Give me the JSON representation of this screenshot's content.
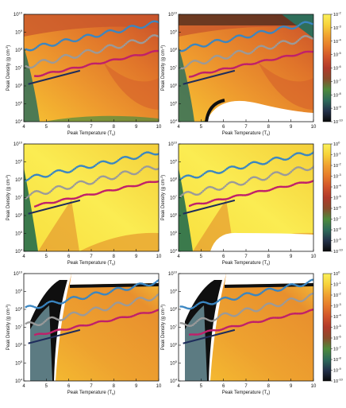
{
  "figure": {
    "xlabel": "Peak Temperature (T",
    "xlabel_sub": "9",
    "xlabel_end": ")",
    "ylabel": "Peak Density (g cm",
    "ylabel_sup": "-3",
    "ylabel_end": ")"
  },
  "chart_data": [
    {
      "type": "heatmap",
      "panel": "row1-left",
      "xlim": [
        4,
        10
      ],
      "xticks": [
        "4",
        "5",
        "6",
        "7",
        "8",
        "9",
        "10"
      ],
      "ylim_exp": [
        4,
        10
      ],
      "yticks": [
        "10^4",
        "10^5",
        "10^6",
        "10^7",
        "10^8",
        "10^9",
        "10^10"
      ],
      "variant": "orange"
    },
    {
      "type": "heatmap",
      "panel": "row1-right",
      "xlim": [
        4,
        10
      ],
      "xticks": [
        "4",
        "5",
        "6",
        "7",
        "8",
        "9",
        "10"
      ],
      "ylim_exp": [
        4,
        10
      ],
      "yticks": [
        "10^4",
        "10^5",
        "10^6",
        "10^7",
        "10^8",
        "10^9",
        "10^10"
      ],
      "variant": "orange-void",
      "colorbar": {
        "ticks": [
          "10^-2",
          "10^-3",
          "10^-4",
          "10^-5",
          "10^-6",
          "10^-7",
          "10^-8",
          "10^-9",
          "10^-10"
        ],
        "range_exp": [
          -10,
          -2
        ]
      }
    },
    {
      "type": "heatmap",
      "panel": "row2-left",
      "xlim": [
        4,
        10
      ],
      "xticks": [
        "4",
        "5",
        "6",
        "7",
        "8",
        "9",
        "10"
      ],
      "ylim_exp": [
        4,
        10
      ],
      "yticks": [
        "10^4",
        "10^5",
        "10^6",
        "10^7",
        "10^8",
        "10^9",
        "10^10"
      ],
      "variant": "yellow"
    },
    {
      "type": "heatmap",
      "panel": "row2-right",
      "xlim": [
        4,
        10
      ],
      "xticks": [
        "4",
        "5",
        "6",
        "7",
        "8",
        "9",
        "10"
      ],
      "ylim_exp": [
        4,
        10
      ],
      "yticks": [
        "10^4",
        "10^5",
        "10^6",
        "10^7",
        "10^8",
        "10^9",
        "10^10"
      ],
      "variant": "yellow-void",
      "colorbar": {
        "ticks": [
          "10^0",
          "10^-1",
          "10^-2",
          "10^-3",
          "10^-4",
          "10^-5",
          "10^-6",
          "10^-7",
          "10^-8",
          "10^-9",
          "10^-10"
        ],
        "range_exp": [
          -10,
          0
        ]
      }
    },
    {
      "type": "heatmap",
      "panel": "row3-left",
      "xlim": [
        4,
        10
      ],
      "xticks": [
        "4",
        "5",
        "6",
        "7",
        "8",
        "9",
        "10"
      ],
      "ylim_exp": [
        4,
        10
      ],
      "yticks": [
        "10^4",
        "10^5",
        "10^6",
        "10^7",
        "10^8",
        "10^9",
        "10^10"
      ],
      "variant": "hot"
    },
    {
      "type": "heatmap",
      "panel": "row3-right",
      "xlim": [
        4,
        10
      ],
      "xticks": [
        "4",
        "5",
        "6",
        "7",
        "8",
        "9",
        "10"
      ],
      "ylim_exp": [
        4,
        10
      ],
      "yticks": [
        "10^4",
        "10^5",
        "10^6",
        "10^7",
        "10^8",
        "10^9",
        "10^10"
      ],
      "variant": "hot",
      "colorbar": {
        "ticks": [
          "10^0",
          "10^-1",
          "10^-2",
          "10^-3",
          "10^-4",
          "10^-5",
          "10^-6",
          "10^-7",
          "10^-8",
          "10^-9",
          "10^-10"
        ],
        "range_exp": [
          -10,
          0
        ]
      }
    }
  ],
  "overlays": {
    "colors": {
      "blue": "#3a86c2",
      "grey": "#9a9a9a",
      "magenta": "#c0206a",
      "navy": "#1f2d5c"
    },
    "blue_band": {
      "x": [
        4.1,
        10
      ],
      "y": [
        8.05,
        9.55
      ]
    },
    "grey_band": {
      "x": [
        4.1,
        10
      ],
      "y": [
        7.1,
        8.75
      ]
    },
    "magenta_band": {
      "x": [
        4.5,
        10
      ],
      "y": [
        6.55,
        7.95
      ]
    },
    "navy_line": {
      "x": [
        4.2,
        6.5
      ],
      "y": [
        6.1,
        6.85
      ]
    }
  },
  "colormap": [
    "#0a0a0a",
    "#23314a",
    "#2e6b5a",
    "#4d8a3c",
    "#8a4c2a",
    "#b03a2a",
    "#d0532a",
    "#e67a2a",
    "#f0a030",
    "#f7d23a",
    "#fbf05a"
  ]
}
